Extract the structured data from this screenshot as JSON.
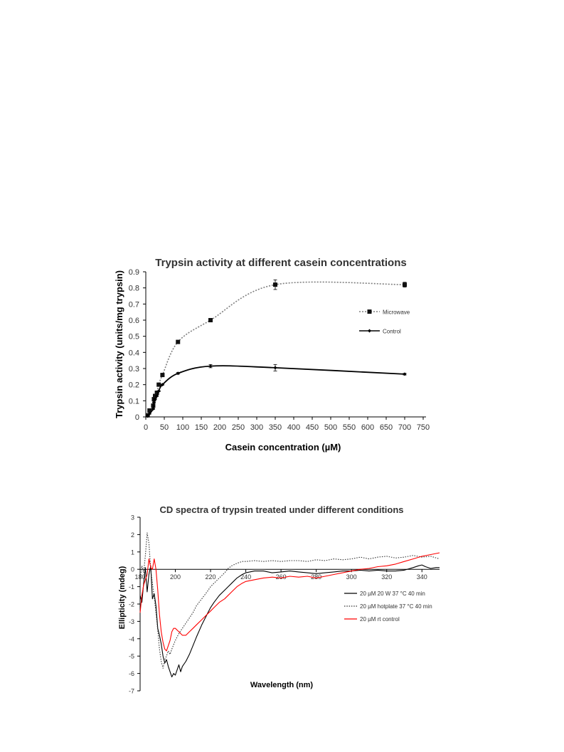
{
  "chart_data": [
    {
      "type": "line",
      "title": "Trypsin activity at different casein concentrations",
      "xlabel": "Casein concentration (µM)",
      "ylabel": "Trypsin activity (units/mg trypsin)",
      "xlim": [
        0,
        750
      ],
      "ylim": [
        0,
        0.9
      ],
      "xticks": [
        "0",
        "50",
        "100",
        "150",
        "200",
        "250",
        "300",
        "350",
        "400",
        "450",
        "500",
        "550",
        "600",
        "650",
        "700",
        "750"
      ],
      "yticks": [
        "0",
        "0.1",
        "0.2",
        "0.3",
        "0.4",
        "0.5",
        "0.6",
        "0.7",
        "0.8",
        "0.9"
      ],
      "grid": false,
      "legend_position": "right",
      "series": [
        {
          "name": "Microwave",
          "line_style": "dotted",
          "color": "#7f7f7f",
          "marker": "square",
          "x": [
            5,
            10,
            20,
            22,
            25,
            30,
            35,
            45,
            87,
            175,
            350,
            700
          ],
          "y": [
            0.01,
            0.04,
            0.07,
            0.11,
            0.13,
            0.15,
            0.2,
            0.26,
            0.465,
            0.6,
            0.82,
            0.82
          ],
          "err": [
            0.005,
            0.005,
            0.005,
            0.005,
            0.005,
            0.005,
            0.005,
            0.005,
            0.01,
            0.01,
            0.03,
            0.015
          ]
        },
        {
          "name": "Control",
          "line_style": "solid",
          "color": "#000000",
          "marker": "diamond",
          "x": [
            5,
            10,
            20,
            22,
            25,
            30,
            35,
            45,
            87,
            175,
            350,
            700
          ],
          "y": [
            0.005,
            0.02,
            0.05,
            0.09,
            0.11,
            0.13,
            0.16,
            0.2,
            0.27,
            0.315,
            0.305,
            0.265
          ],
          "err": [
            0.003,
            0.003,
            0.003,
            0.003,
            0.003,
            0.003,
            0.003,
            0.003,
            0.005,
            0.01,
            0.02,
            0.005
          ]
        }
      ]
    },
    {
      "type": "line",
      "title": "CD spectra of trypsin treated under different conditions",
      "xlabel": "Wavelength (nm)",
      "ylabel": "Ellipticity (mdeg)",
      "xlim": [
        180,
        350
      ],
      "ylim": [
        -7,
        3
      ],
      "xticks": [
        "180",
        "200",
        "220",
        "240",
        "260",
        "280",
        "300",
        "320",
        "340"
      ],
      "yticks": [
        "-7",
        "-6",
        "-5",
        "-4",
        "-3",
        "-2",
        "-1",
        "0",
        "1",
        "2",
        "3"
      ],
      "grid": false,
      "legend_position": "right",
      "series": [
        {
          "name": "20 µM 20 W 37 °C 40 min",
          "line_style": "solid",
          "color": "#000000",
          "x": [
            180,
            181,
            182,
            183,
            184,
            185,
            186,
            187,
            188,
            189,
            190,
            191,
            192,
            193,
            194,
            195,
            196,
            197,
            198,
            199,
            200,
            201,
            202,
            203,
            204,
            206,
            208,
            210,
            212,
            215,
            218,
            220,
            222,
            225,
            228,
            230,
            232,
            235,
            238,
            240,
            245,
            250,
            255,
            260,
            265,
            270,
            275,
            280,
            285,
            290,
            295,
            300,
            305,
            310,
            315,
            320,
            325,
            330,
            335,
            338,
            340,
            342,
            345,
            348,
            350
          ],
          "y": [
            -1.5,
            -1.9,
            -0.8,
            0.1,
            -1.3,
            -0.3,
            0.2,
            -1.7,
            -1.4,
            -2.1,
            -3.4,
            -3.8,
            -4.3,
            -5.0,
            -5.4,
            -5.2,
            -5.6,
            -5.9,
            -6.2,
            -6.0,
            -6.1,
            -5.8,
            -5.5,
            -5.9,
            -5.6,
            -5.3,
            -4.9,
            -4.4,
            -3.9,
            -3.2,
            -2.6,
            -2.2,
            -1.9,
            -1.5,
            -1.2,
            -1.0,
            -0.8,
            -0.5,
            -0.3,
            -0.2,
            -0.1,
            -0.1,
            -0.2,
            -0.15,
            -0.1,
            -0.15,
            -0.2,
            -0.25,
            -0.2,
            -0.15,
            -0.1,
            -0.1,
            -0.05,
            -0.1,
            -0.05,
            -0.1,
            -0.1,
            -0.05,
            0.1,
            0.2,
            0.25,
            0.15,
            0.05,
            0.1,
            0.1
          ]
        },
        {
          "name": "20 µM hotplate 37 °C 40 min",
          "line_style": "dotted",
          "color": "#333333",
          "x": [
            180,
            181,
            182,
            183,
            184,
            185,
            186,
            187,
            188,
            189,
            190,
            191,
            192,
            193,
            194,
            195,
            196,
            197,
            198,
            200,
            202,
            204,
            206,
            208,
            210,
            212,
            215,
            218,
            220,
            222,
            225,
            228,
            230,
            232,
            235,
            238,
            240,
            245,
            250,
            255,
            260,
            265,
            270,
            275,
            280,
            285,
            290,
            295,
            300,
            305,
            310,
            315,
            320,
            325,
            330,
            335,
            340,
            345,
            350
          ],
          "y": [
            -0.6,
            0.2,
            -0.2,
            0.8,
            2.1,
            1.5,
            0.0,
            -0.8,
            -1.6,
            -2.5,
            -3.5,
            -4.6,
            -5.3,
            -5.7,
            -5.2,
            -5.0,
            -4.7,
            -4.9,
            -4.6,
            -4.1,
            -3.7,
            -3.4,
            -3.1,
            -2.8,
            -2.5,
            -2.1,
            -1.7,
            -1.3,
            -1.0,
            -0.8,
            -0.5,
            -0.2,
            0.05,
            0.2,
            0.35,
            0.45,
            0.45,
            0.5,
            0.45,
            0.5,
            0.45,
            0.5,
            0.5,
            0.45,
            0.55,
            0.5,
            0.6,
            0.55,
            0.6,
            0.7,
            0.6,
            0.7,
            0.75,
            0.65,
            0.7,
            0.8,
            0.7,
            0.75,
            0.6
          ]
        },
        {
          "name": "20 µM rt control",
          "line_style": "solid",
          "color": "#ff0000",
          "x": [
            180,
            181,
            182,
            183,
            184,
            185,
            186,
            187,
            188,
            189,
            190,
            191,
            192,
            193,
            194,
            195,
            196,
            197,
            198,
            199,
            200,
            202,
            204,
            206,
            208,
            210,
            212,
            215,
            218,
            220,
            222,
            225,
            228,
            230,
            232,
            235,
            238,
            240,
            245,
            250,
            255,
            260,
            265,
            270,
            275,
            280,
            285,
            290,
            295,
            300,
            305,
            310,
            315,
            320,
            325,
            330,
            335,
            340,
            345,
            350
          ],
          "y": [
            -2.5,
            -1.5,
            -0.9,
            -0.6,
            -0.3,
            0.6,
            0.1,
            0.0,
            0.6,
            0.0,
            -1.2,
            -2.6,
            -3.6,
            -4.2,
            -4.6,
            -4.7,
            -4.4,
            -4.1,
            -3.6,
            -3.4,
            -3.4,
            -3.6,
            -3.8,
            -3.8,
            -3.6,
            -3.4,
            -3.2,
            -2.9,
            -2.6,
            -2.4,
            -2.2,
            -1.9,
            -1.7,
            -1.5,
            -1.3,
            -1.0,
            -0.8,
            -0.7,
            -0.6,
            -0.5,
            -0.45,
            -0.5,
            -0.4,
            -0.45,
            -0.4,
            -0.5,
            -0.4,
            -0.3,
            -0.2,
            -0.1,
            0.0,
            0.05,
            0.15,
            0.2,
            0.3,
            0.45,
            0.6,
            0.75,
            0.85,
            0.95
          ]
        }
      ]
    }
  ]
}
